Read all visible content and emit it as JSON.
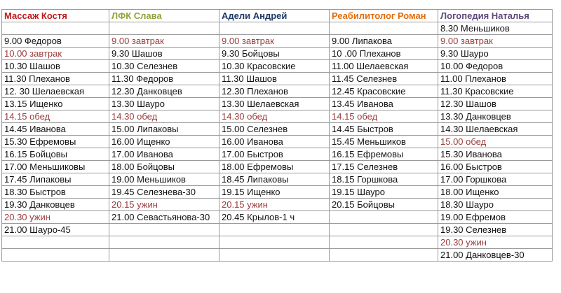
{
  "columns": [
    {
      "header": "Массаж Костя",
      "color": "#c0181b"
    },
    {
      "header": "ЛФК Слава",
      "color": "#8ea33a"
    },
    {
      "header": "Адели Андрей",
      "color": "#1f3864"
    },
    {
      "header": "Реабилитолог Роман",
      "color": "#e36c0a"
    },
    {
      "header": "Логопедия  Наталья",
      "color": "#5f497a"
    }
  ],
  "meal_color": "#9b3b3b",
  "rows": [
    [
      "",
      "",
      "",
      "",
      "8.30 Меньшиков"
    ],
    [
      "9.00 Федоров",
      "9.00 завтрак",
      "9.00 завтрак",
      "9.00 Липакова",
      "9.00 завтрак"
    ],
    [
      "10.00 завтрак",
      "9.30 Шашов",
      "9.30 Бойцовы",
      "10 .00 Плеханов",
      "9.30 Шауро"
    ],
    [
      "10.30 Шашов",
      "10.30 Селезнев",
      "10.30 Красовские",
      "11.00 Шелаевская",
      "10.00 Федоров"
    ],
    [
      "11.30 Плеханов",
      "11.30 Федоров",
      "11.30 Шашов",
      "11.45 Селезнев",
      "11.00 Плеханов"
    ],
    [
      "12. 30 Шелаевская",
      "12.30 Данковцев",
      "12.30 Плеханов",
      "12.45 Красовские",
      "11.30 Красовские"
    ],
    [
      "13.15 Ищенко",
      "13.30 Шауро",
      "13.30 Шелаевская",
      "13.45 Иванова",
      "12.30 Шашов"
    ],
    [
      "14.15 обед",
      "14.30 обед",
      "14.30 обед",
      "14.15 обед",
      "13.30 Данковцев"
    ],
    [
      "14.45 Иванова",
      "15.00 Липаковы",
      "15.00  Селезнев",
      "14.45 Быстров",
      "14.30 Шелаевская"
    ],
    [
      "15.30  Ефремовы",
      "16.00 Ищенко",
      "16.00 Иванова",
      "15.45 Меньшиков",
      "15.00 обед"
    ],
    [
      "16.15  Бойцовы",
      "17.00 Иванова",
      "17.00 Быстров",
      "16.15 Ефремовы",
      "15.30 Иванова"
    ],
    [
      "17.00  Меньшиковы",
      "18.00  Бойцовы",
      "18.00  Ефремовы",
      "17.15 Селезнев",
      "16.00 Быстров"
    ],
    [
      "17.45 Липаковы",
      "19.00  Меньшиков",
      "18.45 Липаковы",
      "18.15 Горшкова",
      "17.00 Горшкова"
    ],
    [
      "18.30 Быстров",
      "19.45 Селезнева-30",
      "19.15 Ищенко",
      "19.15 Шауро",
      "18.00 Ищенко"
    ],
    [
      "19.30  Данковцев",
      "20.15  ужин",
      "20.15  ужин",
      "20.15 Бойцовы",
      "18.30 Шауро"
    ],
    [
      "20.30  ужин",
      "21.00 Севастьянова-30",
      "20.45  Крылов-1 ч",
      "",
      "19.00  Ефремов"
    ],
    [
      "21.00 Шауро-45",
      "",
      "",
      "",
      "19.30 Селезнев"
    ],
    [
      "",
      "",
      "",
      "",
      "20.30   ужин"
    ],
    [
      "",
      "",
      "",
      "",
      "21.00 Данковцев-30"
    ]
  ],
  "meal_cells": [
    [
      1,
      1
    ],
    [
      1,
      2
    ],
    [
      1,
      4
    ],
    [
      2,
      0
    ],
    [
      7,
      0
    ],
    [
      7,
      1
    ],
    [
      7,
      2
    ],
    [
      7,
      3
    ],
    [
      9,
      4
    ],
    [
      14,
      1
    ],
    [
      14,
      2
    ],
    [
      15,
      0
    ],
    [
      17,
      4
    ]
  ]
}
